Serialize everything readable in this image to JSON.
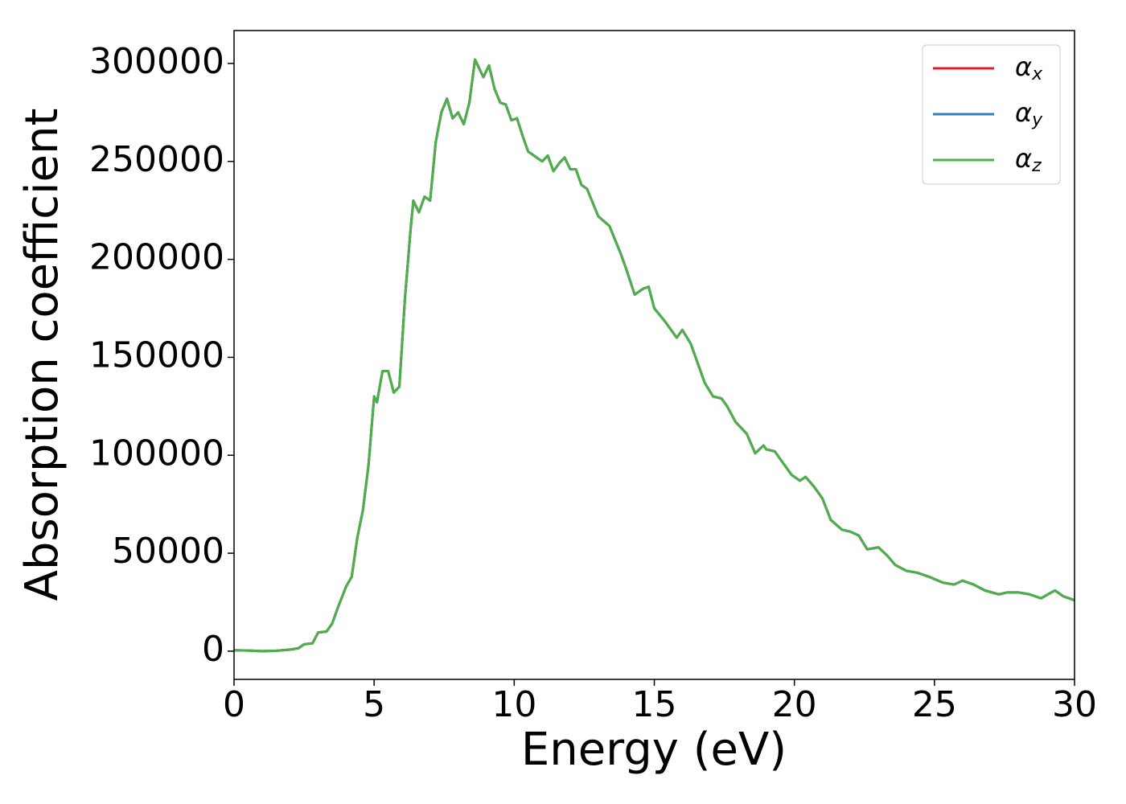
{
  "chart_data": {
    "type": "line",
    "xlabel": "Energy (eV)",
    "ylabel": "Absorption coefficient",
    "x": [
      0,
      0.5,
      1,
      1.5,
      2,
      2.3,
      2.5,
      2.8,
      3,
      3.3,
      3.5,
      3.7,
      4,
      4.2,
      4.4,
      4.6,
      4.8,
      5,
      5.1,
      5.3,
      5.5,
      5.7,
      5.9,
      6.1,
      6.3,
      6.4,
      6.6,
      6.8,
      7,
      7.2,
      7.4,
      7.6,
      7.8,
      8,
      8.2,
      8.4,
      8.6,
      8.8,
      8.9,
      9.1,
      9.3,
      9.5,
      9.7,
      9.9,
      10.1,
      10.3,
      10.5,
      10.8,
      11,
      11.2,
      11.4,
      11.6,
      11.8,
      12,
      12.2,
      12.4,
      12.6,
      13,
      13.4,
      13.8,
      14,
      14.3,
      14.6,
      14.8,
      15,
      15.4,
      15.8,
      16,
      16.3,
      16.6,
      16.8,
      17.1,
      17.4,
      17.6,
      17.9,
      18.3,
      18.6,
      18.9,
      19,
      19.3,
      19.6,
      19.9,
      20.2,
      20.4,
      20.7,
      21,
      21.3,
      21.7,
      22,
      22.3,
      22.6,
      23,
      23.3,
      23.6,
      24,
      24.4,
      24.8,
      25.3,
      25.7,
      26,
      26.4,
      26.8,
      27.3,
      27.6,
      28,
      28.4,
      28.8,
      29.3,
      29.6,
      30
    ],
    "series": [
      {
        "name": "αx",
        "color": "#e41a1c",
        "values": [
          500,
          300,
          0,
          200,
          800,
          1500,
          3500,
          4000,
          9500,
          10000,
          14000,
          22000,
          33000,
          38000,
          58000,
          72000,
          95000,
          130000,
          127000,
          143000,
          143000,
          132000,
          135000,
          180000,
          215000,
          230000,
          224000,
          232000,
          230000,
          260000,
          275000,
          282000,
          272000,
          275000,
          269000,
          280000,
          302000,
          296000,
          293000,
          299000,
          287000,
          280000,
          279000,
          271000,
          272000,
          263000,
          255000,
          252000,
          250000,
          253000,
          245000,
          249000,
          252000,
          246000,
          246000,
          238000,
          236000,
          222000,
          217000,
          203000,
          195000,
          182000,
          185000,
          186000,
          175000,
          168000,
          160000,
          164000,
          157000,
          145000,
          137000,
          130000,
          129000,
          125000,
          117000,
          111000,
          101000,
          105000,
          103000,
          102000,
          96000,
          90000,
          87000,
          89000,
          84000,
          78000,
          67000,
          62000,
          61000,
          59000,
          52000,
          53000,
          49000,
          44000,
          41000,
          40000,
          38000,
          35000,
          34000,
          36000,
          34000,
          31000,
          29000,
          30000,
          30000,
          29000,
          27000,
          31000,
          28000,
          26000
        ]
      },
      {
        "name": "αy",
        "color": "#377eb8",
        "values": [
          500,
          300,
          0,
          200,
          800,
          1500,
          3500,
          4000,
          9500,
          10000,
          14000,
          22000,
          33000,
          38000,
          58000,
          72000,
          95000,
          130000,
          127000,
          143000,
          143000,
          132000,
          135000,
          180000,
          215000,
          230000,
          224000,
          232000,
          230000,
          260000,
          275000,
          282000,
          272000,
          275000,
          269000,
          280000,
          302000,
          296000,
          293000,
          299000,
          287000,
          280000,
          279000,
          271000,
          272000,
          263000,
          255000,
          252000,
          250000,
          253000,
          245000,
          249000,
          252000,
          246000,
          246000,
          238000,
          236000,
          222000,
          217000,
          203000,
          195000,
          182000,
          185000,
          186000,
          175000,
          168000,
          160000,
          164000,
          157000,
          145000,
          137000,
          130000,
          129000,
          125000,
          117000,
          111000,
          101000,
          105000,
          103000,
          102000,
          96000,
          90000,
          87000,
          89000,
          84000,
          78000,
          67000,
          62000,
          61000,
          59000,
          52000,
          53000,
          49000,
          44000,
          41000,
          40000,
          38000,
          35000,
          34000,
          36000,
          34000,
          31000,
          29000,
          30000,
          30000,
          29000,
          27000,
          31000,
          28000,
          26000
        ]
      },
      {
        "name": "αz",
        "color": "#4daf4a",
        "values": [
          500,
          300,
          0,
          200,
          800,
          1500,
          3500,
          4000,
          9500,
          10000,
          14000,
          22000,
          33000,
          38000,
          58000,
          72000,
          95000,
          130000,
          127000,
          143000,
          143000,
          132000,
          135000,
          180000,
          215000,
          230000,
          224000,
          232000,
          230000,
          260000,
          275000,
          282000,
          272000,
          275000,
          269000,
          280000,
          302000,
          296000,
          293000,
          299000,
          287000,
          280000,
          279000,
          271000,
          272000,
          263000,
          255000,
          252000,
          250000,
          253000,
          245000,
          249000,
          252000,
          246000,
          246000,
          238000,
          236000,
          222000,
          217000,
          203000,
          195000,
          182000,
          185000,
          186000,
          175000,
          168000,
          160000,
          164000,
          157000,
          145000,
          137000,
          130000,
          129000,
          125000,
          117000,
          111000,
          101000,
          105000,
          103000,
          102000,
          96000,
          90000,
          87000,
          89000,
          84000,
          78000,
          67000,
          62000,
          61000,
          59000,
          52000,
          53000,
          49000,
          44000,
          41000,
          40000,
          38000,
          35000,
          34000,
          36000,
          34000,
          31000,
          29000,
          30000,
          30000,
          29000,
          27000,
          31000,
          28000,
          26000
        ]
      }
    ],
    "xlim": [
      0,
      30
    ],
    "xticks": [
      0,
      5,
      10,
      15,
      20,
      25,
      30
    ],
    "ylim": [
      -14400,
      316800
    ],
    "yticks": [
      0,
      50000,
      100000,
      150000,
      200000,
      250000,
      300000
    ],
    "legend": "upper right"
  }
}
